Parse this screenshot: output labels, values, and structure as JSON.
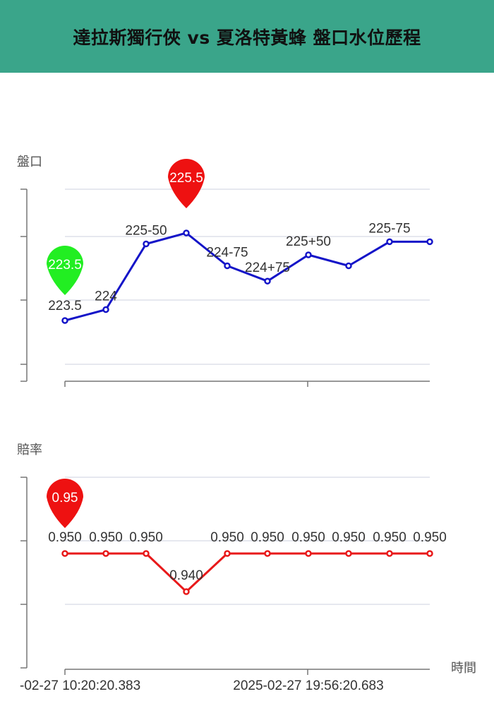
{
  "page": {
    "title": "達拉斯獨行俠 vs 夏洛特黃蜂 盤口水位歷程"
  },
  "colors": {
    "header_bg": "#3aa58a",
    "line_series": "#1414c8",
    "odds_series": "#e8191a",
    "pin_min": "#22ee22",
    "pin_max": "#ee1111"
  },
  "chart_data": [
    {
      "type": "line",
      "ylabel": "盤口",
      "ylim": [
        222.5,
        226.5
      ],
      "grid": true,
      "points": [
        {
          "y": 223.5,
          "label": "223.5"
        },
        {
          "y": 223.75,
          "label": "224"
        },
        {
          "y": 225.25,
          "label": "225-50"
        },
        {
          "y": 225.5,
          "label": ""
        },
        {
          "y": 224.75,
          "label": "224-75"
        },
        {
          "y": 224.4,
          "label": "224+75"
        },
        {
          "y": 225.0,
          "label": "225+50"
        },
        {
          "y": 224.75,
          "label": ""
        },
        {
          "y": 225.3,
          "label": "225-75"
        },
        {
          "y": 225.3,
          "label": ""
        }
      ],
      "markers": [
        {
          "index": 0,
          "label": "223.5",
          "kind": "min"
        },
        {
          "index": 3,
          "label": "225.5",
          "kind": "max"
        }
      ]
    },
    {
      "type": "line",
      "ylabel": "賠率",
      "xlabel": "時間",
      "ylim": [
        0.92,
        0.97
      ],
      "grid": true,
      "points": [
        {
          "y": 0.95,
          "label": "0.950"
        },
        {
          "y": 0.95,
          "label": "0.950"
        },
        {
          "y": 0.95,
          "label": "0.950"
        },
        {
          "y": 0.94,
          "label": "0.940"
        },
        {
          "y": 0.95,
          "label": "0.950"
        },
        {
          "y": 0.95,
          "label": "0.950"
        },
        {
          "y": 0.95,
          "label": "0.950"
        },
        {
          "y": 0.95,
          "label": "0.950"
        },
        {
          "y": 0.95,
          "label": "0.950"
        },
        {
          "y": 0.95,
          "label": "0.950"
        }
      ],
      "markers": [
        {
          "index": 0,
          "label": "0.95",
          "kind": "max"
        }
      ],
      "x_tick_labels": [
        "-02-27 10:20:20.383",
        "2025-02-27 19:56:20.683"
      ]
    }
  ]
}
